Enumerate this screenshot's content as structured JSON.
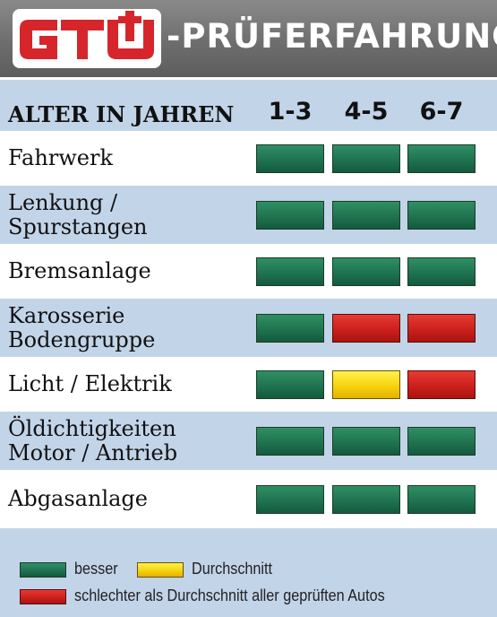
{
  "header": {
    "logo_text": "GTÜ",
    "title": "-PRÜFERFAHRUNG"
  },
  "colors": {
    "besser": "#1f7350",
    "durchschnitt": "#f6d20e",
    "schlechter": "#cc201c",
    "logo_red": "#d6262b"
  },
  "chart_data": {
    "type": "table",
    "row_header": "ALTER IN JAHREN",
    "columns": [
      "1-3",
      "4-5",
      "6-7"
    ],
    "rows": [
      {
        "label": "Fahrwerk",
        "ratings": [
          "besser",
          "besser",
          "besser"
        ]
      },
      {
        "label": "Lenkung /\nSpurstangen",
        "ratings": [
          "besser",
          "besser",
          "besser"
        ]
      },
      {
        "label": "Bremsanlage",
        "ratings": [
          "besser",
          "besser",
          "besser"
        ]
      },
      {
        "label": "Karosserie\nBodengruppe",
        "ratings": [
          "besser",
          "schlechter",
          "schlechter"
        ]
      },
      {
        "label": "Licht / Elektrik",
        "ratings": [
          "besser",
          "durchschnitt",
          "schlechter"
        ]
      },
      {
        "label": "Öldichtigkeiten\nMotor / Antrieb",
        "ratings": [
          "besser",
          "besser",
          "besser"
        ]
      },
      {
        "label": "Abgasanlage",
        "ratings": [
          "besser",
          "besser",
          "besser"
        ]
      }
    ],
    "legend": [
      {
        "key": "besser",
        "label": "besser"
      },
      {
        "key": "durchschnitt",
        "label": "Durchschnitt"
      },
      {
        "key": "schlechter",
        "label": "schlechter als Durchschnitt aller geprüften Autos"
      }
    ]
  }
}
